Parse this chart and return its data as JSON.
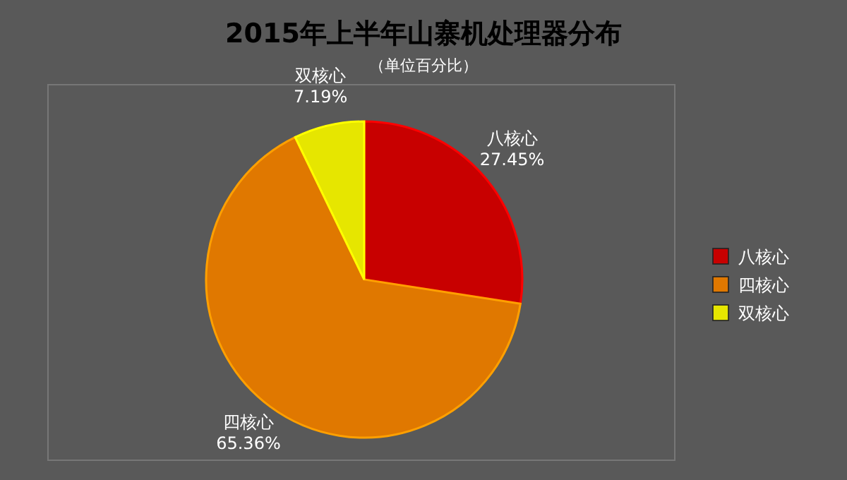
{
  "chart_data": {
    "type": "pie",
    "title": "2015年上半年山寨机处理器分布",
    "subtitle": "（单位百分比）",
    "categories": [
      "八核心",
      "四核心",
      "双核心"
    ],
    "values": [
      27.45,
      65.36,
      7.19
    ],
    "colors": [
      "#c80000",
      "#e07800",
      "#e6e600"
    ],
    "value_labels": [
      "27.45%",
      "65.36%",
      "7.19%"
    ],
    "legend": "right"
  }
}
